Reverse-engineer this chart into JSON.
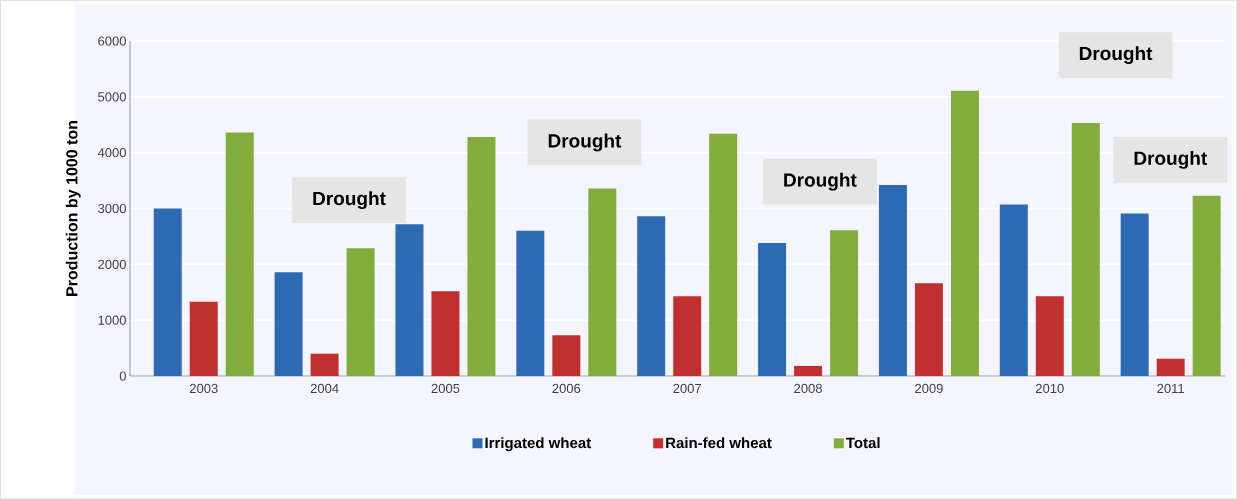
{
  "chart_data": {
    "type": "bar",
    "ylabel": "Production by 1000 ton",
    "categories": [
      "2003",
      "2004",
      "2005",
      "2006",
      "2007",
      "2008",
      "2009",
      "2010",
      "2011"
    ],
    "series": [
      {
        "name": "Irrigated wheat",
        "color": "#2e6ab4",
        "values": [
          3000,
          1860,
          2720,
          2600,
          2860,
          2380,
          3420,
          3070,
          2910
        ]
      },
      {
        "name": "Rain-fed wheat",
        "color": "#c0302e",
        "values": [
          1330,
          400,
          1520,
          730,
          1430,
          180,
          1660,
          1430,
          310
        ]
      },
      {
        "name": "Total",
        "color": "#82ad3c",
        "values": [
          4360,
          2290,
          4280,
          3360,
          4340,
          2610,
          5110,
          4530,
          3230
        ]
      }
    ],
    "ylim": [
      0,
      6000
    ],
    "yticks": [
      0,
      1000,
      2000,
      3000,
      4000,
      5000,
      6000
    ],
    "grid": "y",
    "legend": "bottom",
    "annotations": [
      "Drought",
      "Drought",
      "Drought",
      "Drought",
      "Drought"
    ]
  }
}
